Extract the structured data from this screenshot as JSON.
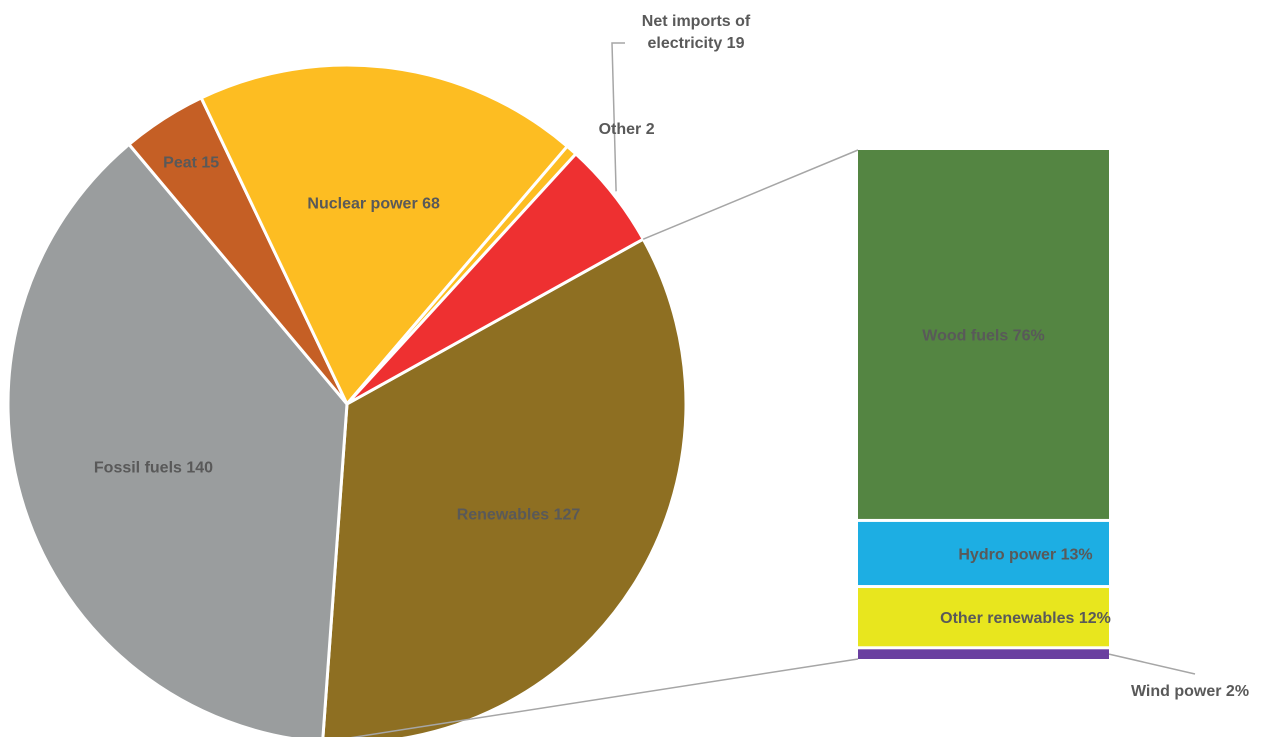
{
  "chart_data": [
    {
      "type": "pie",
      "categories": [
        "Renewables",
        "Fossil fuels",
        "Peat",
        "Nuclear power",
        "Other",
        "Net imports of electricity"
      ],
      "values": [
        127,
        140,
        15,
        68,
        2,
        19
      ],
      "labels": [
        "Renewables 127",
        "Fossil fuels 140",
        "Peat 15",
        "Nuclear power 68",
        "Other 2",
        "Net imports of electricity 19"
      ],
      "colors": [
        "#8e6f22",
        "#9a9d9e",
        "#c55f25",
        "#fdbd22",
        "#fdbd22",
        "#ee3031"
      ],
      "label_colors": [
        "#595959",
        "#595959",
        "#595959",
        "#595959",
        "#595959",
        "#595959"
      ]
    },
    {
      "type": "bar",
      "stacked": true,
      "categories": [
        "Wood fuels",
        "Hydro power",
        "Other renewables",
        "Wind power"
      ],
      "values": [
        76,
        13,
        12,
        2
      ],
      "unit": "%",
      "labels": [
        "Wood fuels 76%",
        "Hydro power 13%",
        "Other renewables 12%",
        "Wind power 2%"
      ],
      "colors": [
        "#548542",
        "#1daee3",
        "#e8e61e",
        "#6a3fa0"
      ]
    }
  ]
}
